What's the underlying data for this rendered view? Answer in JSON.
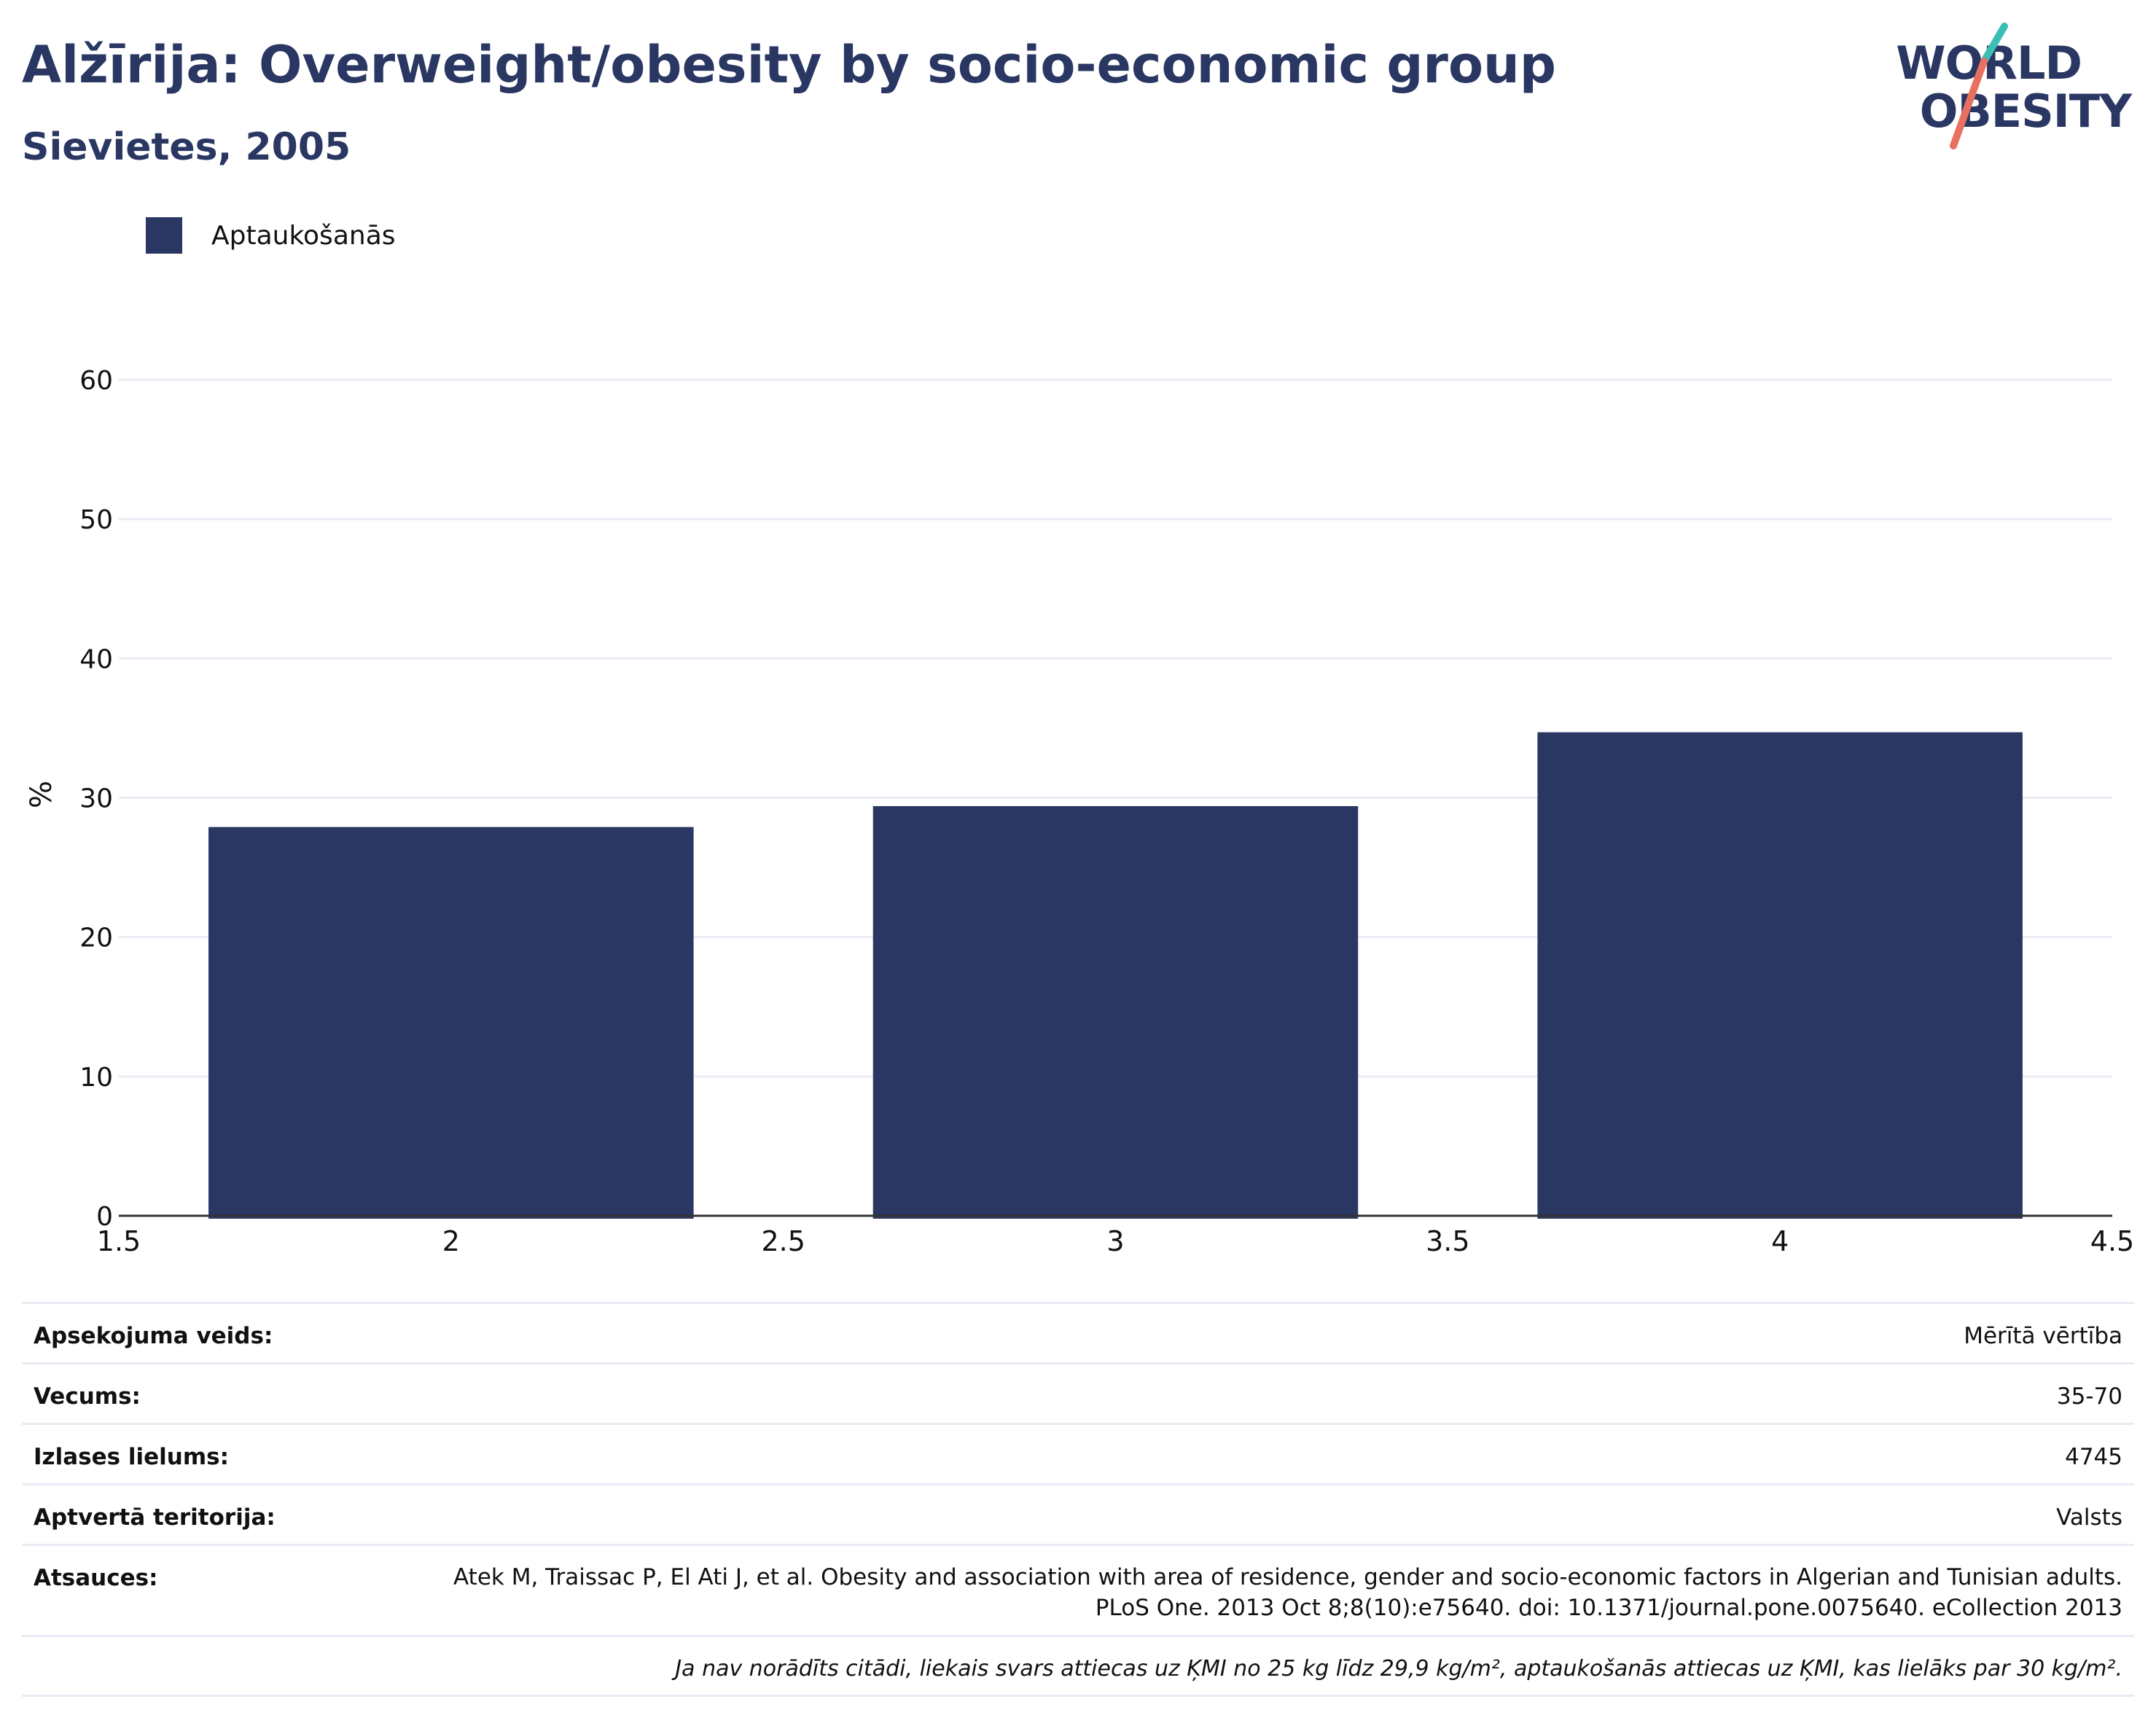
{
  "header": {
    "title": "Alžīrija: Overweight/obesity by socio-economic group",
    "subtitle": "Sievietes, 2005",
    "logo_line1": "WORLD",
    "logo_line2": "OBESITY"
  },
  "legend": {
    "label": "Aptaukošanās",
    "color": "#2a3763"
  },
  "chart_data": {
    "type": "bar",
    "title": "Alžīrija: Overweight/obesity by socio-economic group",
    "subtitle": "Sievietes, 2005",
    "ylabel": "%",
    "xlabel": "",
    "xlim": [
      1.5,
      4.5
    ],
    "ylim": [
      0,
      65
    ],
    "x_ticks": [
      "1.5",
      "2",
      "2.5",
      "3",
      "3.5",
      "4",
      "4.5"
    ],
    "y_ticks": [
      "0",
      "10",
      "20",
      "30",
      "40",
      "50",
      "60"
    ],
    "grid": true,
    "legend_position": "top-left",
    "series": [
      {
        "name": "Aptaukošanās",
        "color": "#2a3763",
        "x": [
          2,
          3,
          4
        ],
        "values": [
          27.9,
          29.4,
          34.7
        ]
      }
    ]
  },
  "info": {
    "rows": [
      {
        "key": "Apsekojuma veids:",
        "value": "Mērītā vērtība"
      },
      {
        "key": "Vecums:",
        "value": "35-70"
      },
      {
        "key": "Izlases lielums:",
        "value": "4745"
      },
      {
        "key": "Aptvertā teritorija:",
        "value": "Valsts"
      },
      {
        "key": "Atsauces:",
        "value": "Atek M, Traissac P, El Ati J, et al. Obesity and association with area of residence, gender and socio-economic factors in Algerian and Tunisian adults. PLoS One. 2013 Oct 8;8(10):e75640. doi: 10.1371/journal.pone.0075640. eCollection 2013"
      }
    ],
    "footnote": "Ja nav norādīts citādi, liekais svars attiecas uz ĶMI no 25 kg līdz 29,9 kg/m², aptaukošanās attiecas uz ĶMI, kas lielāks par 30 kg/m²."
  }
}
